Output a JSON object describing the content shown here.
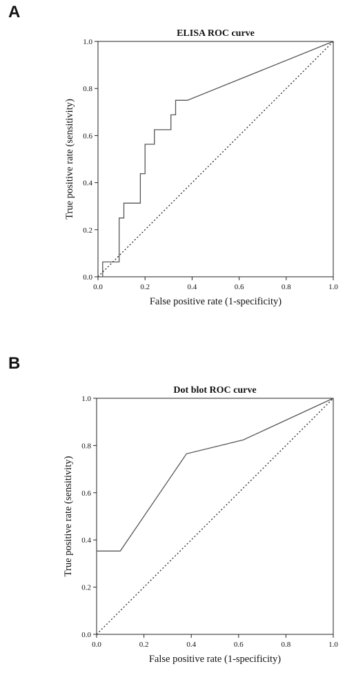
{
  "panels": [
    {
      "letter": "A"
    },
    {
      "letter": "B"
    }
  ],
  "chart_data": [
    {
      "type": "line",
      "title": "ELISA ROC curve",
      "xlabel": "False positive rate (1-specificity)",
      "ylabel": "True positive rate (sensitivity)",
      "xlim": [
        0,
        1
      ],
      "ylim": [
        0,
        1
      ],
      "x_ticks": [
        "0.0",
        "0.2",
        "0.4",
        "0.6",
        "0.8",
        "1.0"
      ],
      "y_ticks": [
        "0.0",
        "0.2",
        "0.4",
        "0.6",
        "0.8",
        "1.0"
      ],
      "grid": false,
      "series": [
        {
          "style": "solid",
          "color": "#555555",
          "x": [
            0,
            0.02,
            0.02,
            0.09,
            0.09,
            0.11,
            0.11,
            0.18,
            0.18,
            0.2,
            0.2,
            0.24,
            0.24,
            0.31,
            0.31,
            0.33,
            0.33,
            0.38,
            1.0
          ],
          "y": [
            0,
            0,
            0.063,
            0.063,
            0.25,
            0.25,
            0.313,
            0.313,
            0.438,
            0.438,
            0.563,
            0.563,
            0.625,
            0.625,
            0.688,
            0.688,
            0.75,
            0.75,
            1.0
          ]
        },
        {
          "style": "dotted",
          "color": "#333333",
          "x": [
            0,
            1
          ],
          "y": [
            0,
            1
          ]
        }
      ]
    },
    {
      "type": "line",
      "title": "Dot blot ROC curve",
      "xlabel": "False positive rate (1-specificity)",
      "ylabel": "True positive rate (sensitivity)",
      "xlim": [
        0,
        1
      ],
      "ylim": [
        0,
        1
      ],
      "x_ticks": [
        "0.0",
        "0.2",
        "0.4",
        "0.6",
        "0.8",
        "1.0"
      ],
      "y_ticks": [
        "0.0",
        "0.2",
        "0.4",
        "0.6",
        "0.8",
        "1.0"
      ],
      "grid": false,
      "series": [
        {
          "style": "solid",
          "color": "#555555",
          "x": [
            0,
            0,
            0.1,
            0.38,
            0.62,
            1.0
          ],
          "y": [
            0,
            0.353,
            0.353,
            0.765,
            0.824,
            1.0
          ]
        },
        {
          "style": "dotted",
          "color": "#333333",
          "x": [
            0,
            1
          ],
          "y": [
            0,
            1
          ]
        }
      ]
    }
  ]
}
